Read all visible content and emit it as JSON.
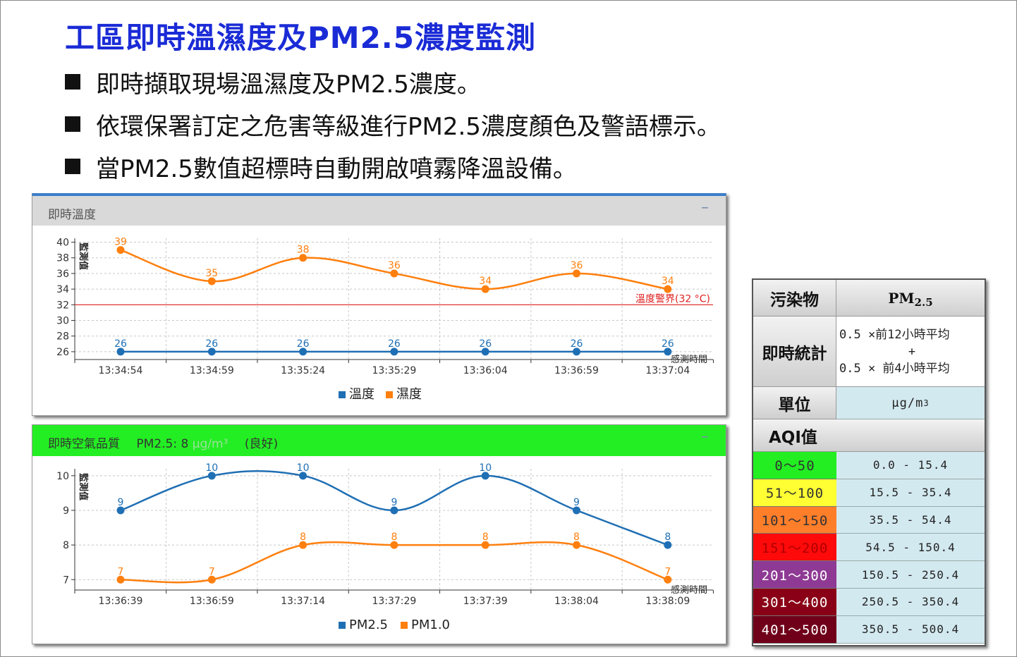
{
  "slide": {
    "title": "工區即時溫濕度及PM2.5濃度監測",
    "bullets": [
      "即時擷取現場溫濕度及PM2.5濃度。",
      "依環保署訂定之危害等級進行PM2.5濃度顏色及警語標示。",
      "當PM2.5數值超標時自動開啟噴霧降溫設備。"
    ]
  },
  "panel1": {
    "title": "即時溫度",
    "collapse_label": "–"
  },
  "panel2": {
    "title": "即時空氣品質",
    "pm_label": "PM2.5: 8",
    "pm_unit": "μg/m³",
    "pm_status": "(良好)",
    "collapse_label": "–"
  },
  "chart_data": [
    {
      "type": "line",
      "ylabel": "監測值",
      "xlabel": "感測時間",
      "x": [
        "13:34:54",
        "13:34:59",
        "13:35:24",
        "13:35:29",
        "13:36:04",
        "13:36:59",
        "13:37:04"
      ],
      "y_ticks": [
        26,
        28,
        30,
        32,
        34,
        36,
        38,
        40
      ],
      "ylim": [
        25,
        40.5
      ],
      "series": [
        {
          "name": "溫度",
          "color": "#1f6fb4",
          "values": [
            26,
            26,
            26,
            26,
            26,
            26,
            26
          ]
        },
        {
          "name": "濕度",
          "color": "#ff7f0e",
          "values": [
            39,
            35,
            38,
            36,
            34,
            36,
            34
          ]
        }
      ],
      "threshold": {
        "value": 32,
        "label": "溫度警界(32 °C)",
        "color": "#e02020"
      },
      "grid": true,
      "legend": "bottom-center"
    },
    {
      "type": "line",
      "ylabel": "監測值",
      "xlabel": "感測時間",
      "x": [
        "13:36:39",
        "13:36:59",
        "13:37:14",
        "13:37:29",
        "13:37:39",
        "13:38:04",
        "13:38:09"
      ],
      "y_ticks": [
        7,
        8,
        9,
        10
      ],
      "ylim": [
        6.7,
        10.2
      ],
      "series": [
        {
          "name": "PM2.5",
          "color": "#1f6fb4",
          "values": [
            9,
            10,
            10,
            9,
            10,
            9,
            8
          ]
        },
        {
          "name": "PM1.0",
          "color": "#ff7f0e",
          "values": [
            7,
            7,
            8,
            8,
            8,
            8,
            7
          ]
        }
      ],
      "grid": true,
      "legend": "bottom-center"
    }
  ],
  "aqi_table": {
    "pollutant_label": "污染物",
    "pollutant": "PM",
    "pollutant_sub": "2.5",
    "stat_label": "即時統計",
    "stat_line1": "0.5 ×前12小時平均",
    "stat_plus": "+",
    "stat_line2": "0.5 × 前4小時平均",
    "unit_label": "單位",
    "unit_value": "μg/m",
    "unit_sup": "3",
    "aqi_label": "AQI值",
    "rows": [
      {
        "level": "0～50",
        "range": "0.0 - 15.4",
        "color": "#22ee22",
        "text": "#333"
      },
      {
        "level": "51～100",
        "range": "15.5 - 35.4",
        "color": "#ffff33",
        "text": "#333"
      },
      {
        "level": "101～150",
        "range": "35.5 - 54.4",
        "color": "#ff7e2a",
        "text": "#333"
      },
      {
        "level": "151～200",
        "range": "54.5 - 150.4",
        "color": "#ff0a0a",
        "text": "#b00000"
      },
      {
        "level": "201～300",
        "range": "150.5 - 250.4",
        "color": "#8e3a94",
        "text": "#ffffff"
      },
      {
        "level": "301～400",
        "range": "250.5 - 350.4",
        "color": "#8a0016",
        "text": "#ffffff"
      },
      {
        "level": "401～500",
        "range": "350.5 - 500.4",
        "color": "#70001a",
        "text": "#ffffff"
      }
    ]
  }
}
